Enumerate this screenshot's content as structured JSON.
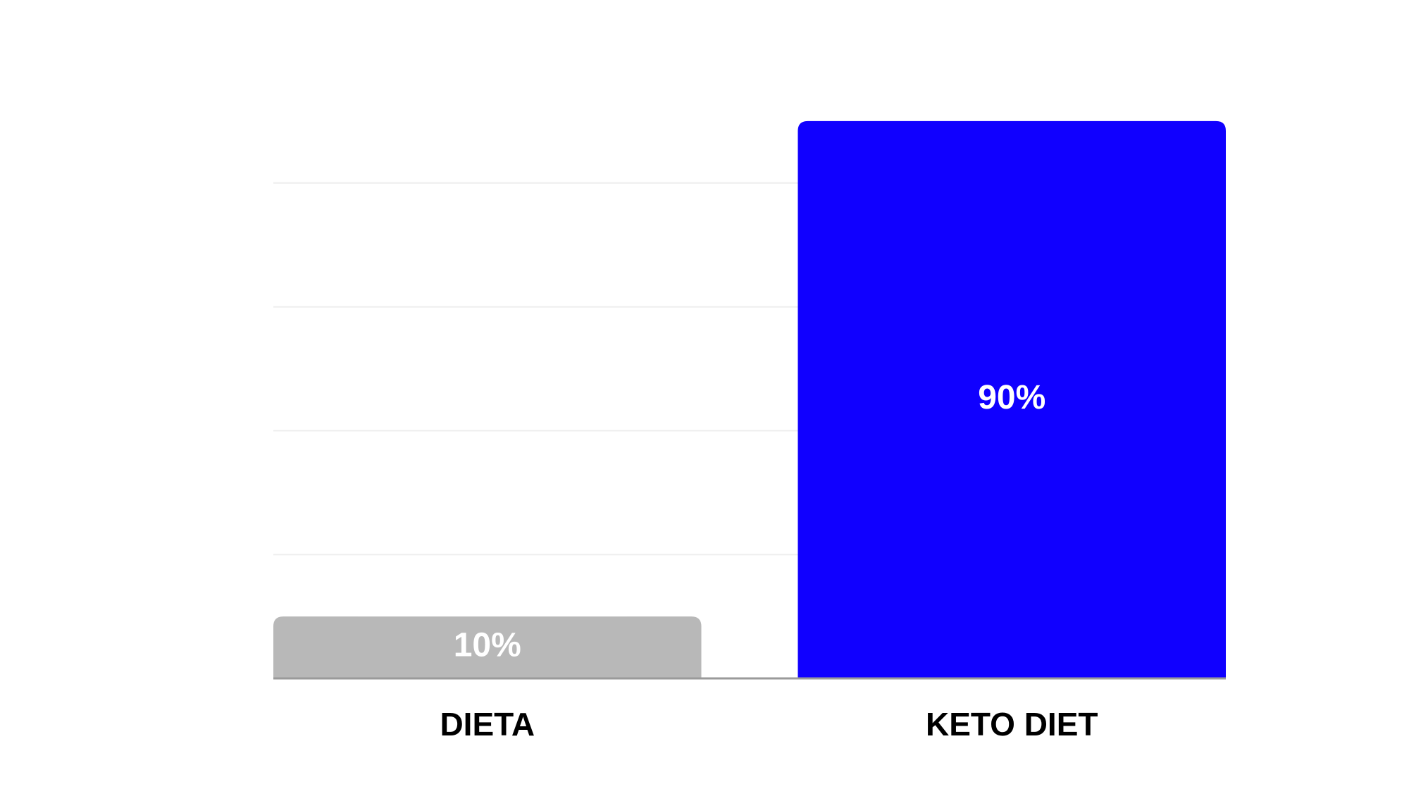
{
  "chart_data": {
    "type": "bar",
    "categories": [
      "DIETA",
      "KETO DIET"
    ],
    "values": [
      10,
      90
    ],
    "value_labels": [
      "10%",
      "90%"
    ],
    "colors": [
      "#b8b8b8",
      "#1000ff"
    ],
    "ylim": [
      0,
      100
    ],
    "yticks": [
      0,
      20,
      40,
      60,
      80
    ],
    "grid": true
  }
}
